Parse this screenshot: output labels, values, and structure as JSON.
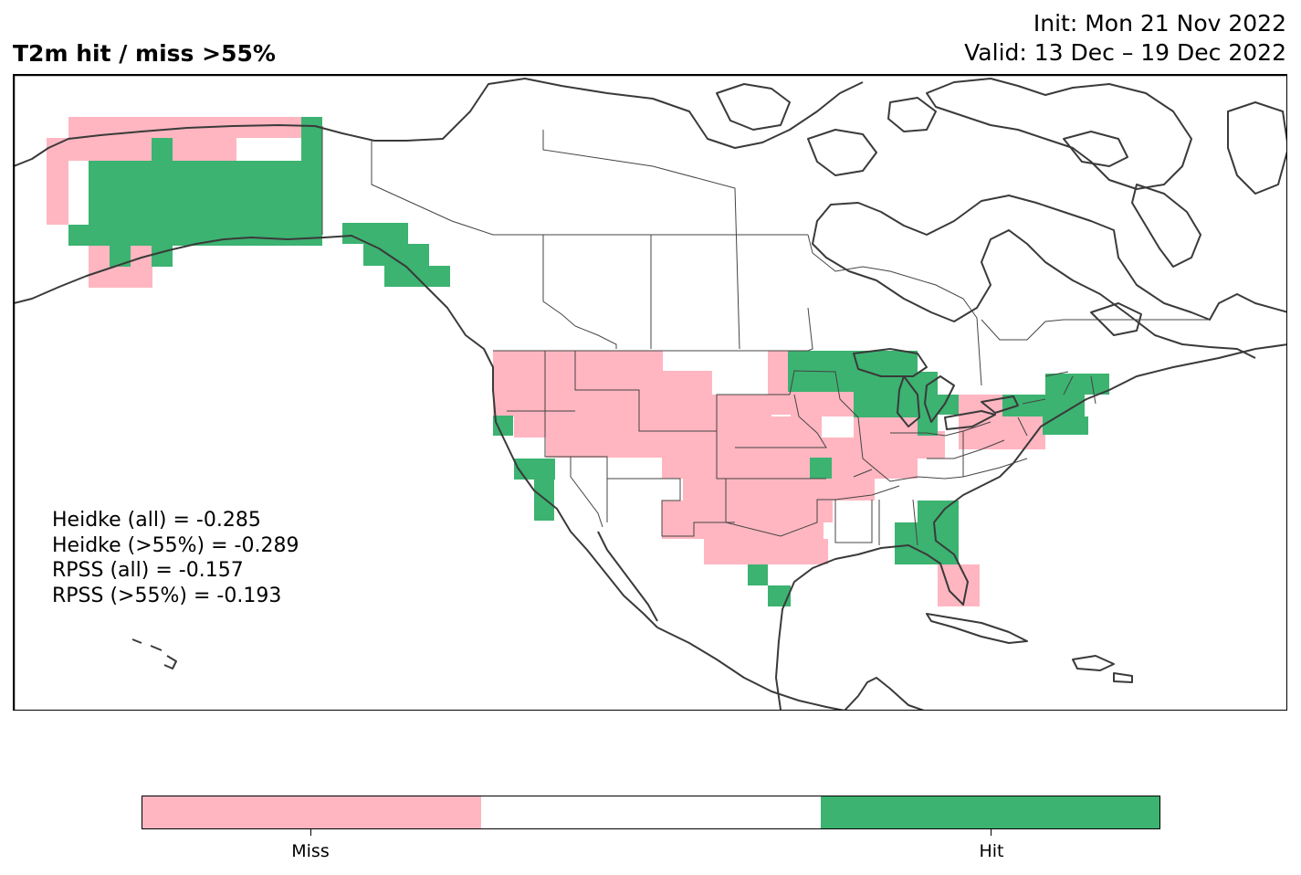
{
  "title": {
    "left": "T2m hit / miss  >55%",
    "init": "Init: Mon 21 Nov 2022",
    "valid": "Valid: 13 Dec – 19 Dec 2022"
  },
  "stats": [
    "Heidke (all) = -0.285",
    "Heidke (>55%) = -0.289",
    "RPSS (all) = -0.157",
    "RPSS (>55%) = -0.193"
  ],
  "colors": {
    "miss": "#ffb6c1",
    "neutral": "#ffffff",
    "hit": "#3cb371",
    "coastline": "#3a3a3a",
    "border": "#444444"
  },
  "legend": {
    "categories": [
      "Miss",
      "",
      "Hit"
    ],
    "tick_labels": [
      "Miss",
      "Hit"
    ]
  }
}
